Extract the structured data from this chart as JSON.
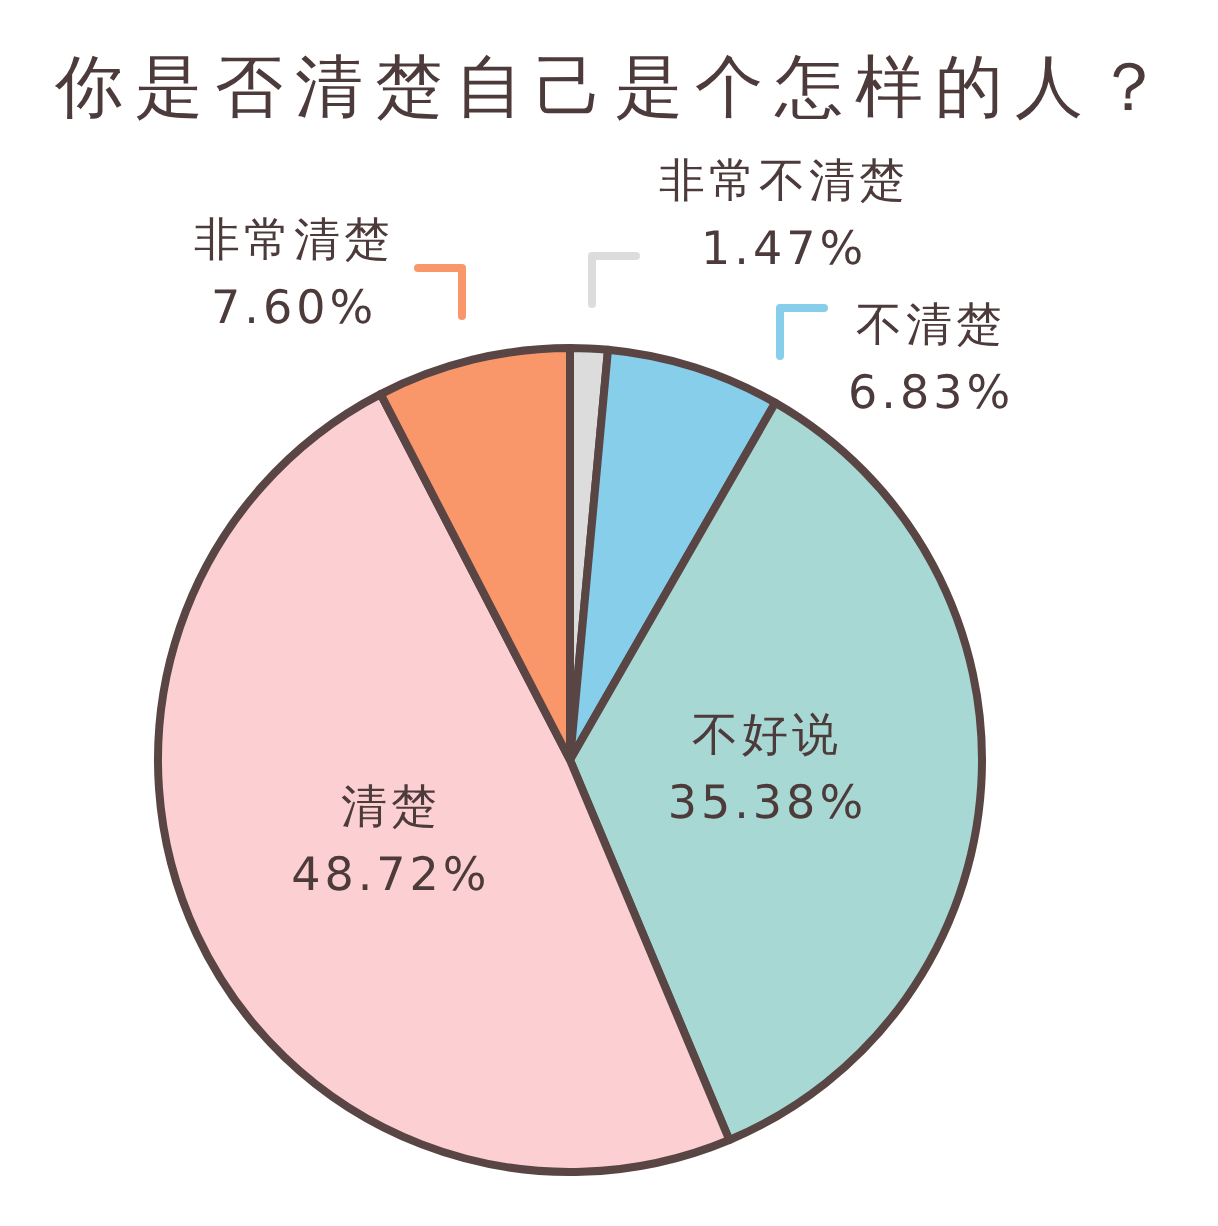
{
  "chart_data": {
    "type": "pie",
    "title": "你是否清楚自己是个怎样的人？",
    "categories": [
      "非常不清楚",
      "不清楚",
      "不好说",
      "清楚",
      "非常清楚"
    ],
    "values": [
      1.47,
      6.83,
      35.38,
      48.72,
      7.6
    ],
    "colors": [
      "#dcdcdc",
      "#87ceeb",
      "#a8d8d4",
      "#fcd0d2",
      "#f9976b"
    ],
    "value_labels": [
      "1.47%",
      "6.83%",
      "35.38%",
      "48.72%",
      "7.60%"
    ]
  }
}
